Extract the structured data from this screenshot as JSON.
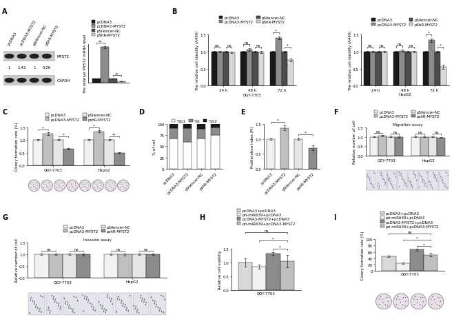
{
  "blot": {
    "lanes": [
      "pcDNA3",
      "pcDNA3-MYST2",
      "pSilencer-NC",
      "pShR-MYST2"
    ],
    "bands": [
      "MYST2",
      "GAPDH"
    ],
    "band_values": [
      1,
      1.43,
      1,
      0.26
    ]
  },
  "chart_data": [
    {
      "type": "bar",
      "panel": "A",
      "categories": [
        null
      ],
      "ylabel": "The relative MYST2 mRNA level",
      "ylim": [
        0,
        10
      ],
      "tick_labels": false,
      "legend": "above",
      "series": [
        {
          "name": "pcDNA3",
          "color": "#1a1a1a",
          "values": [
            1
          ],
          "errors": [
            0.05
          ]
        },
        {
          "name": "pcDNA3-MYST2",
          "color": "#8c8c8c",
          "values": [
            9.2
          ],
          "errors": [
            0.3
          ]
        },
        {
          "name": "pSilencer-NC",
          "color": "#4d4d4d",
          "values": [
            1
          ],
          "errors": [
            0.05
          ]
        },
        {
          "name": "pShR-MYST2",
          "color": "#d9d9d9",
          "values": [
            0.28
          ],
          "errors": [
            0.03
          ]
        }
      ],
      "annotations": [
        {
          "text": "**",
          "group": 0,
          "pair": [
            0,
            1
          ]
        },
        {
          "text": "**",
          "group": 0,
          "pair": [
            2,
            3
          ]
        }
      ]
    },
    {
      "type": "bar",
      "panel": "B",
      "categories": [
        "24 h",
        "48 h",
        "72 h"
      ],
      "xlabel": "QGY-7703",
      "ylabel": "The relative cell viability (A490)",
      "ylim": [
        0,
        1.5
      ],
      "yticks": [
        0.0,
        0.5,
        1.0,
        1.5
      ],
      "legend": "above",
      "series": [
        {
          "name": "pcDNA3",
          "color": "#1a1a1a",
          "values": [
            1,
            1,
            1
          ],
          "errors": [
            0.02,
            0.02,
            0.02
          ]
        },
        {
          "name": "pcDNA3-MYST2",
          "color": "#8c8c8c",
          "values": [
            1,
            1.05,
            1.4
          ],
          "errors": [
            0.02,
            0.04,
            0.05
          ]
        },
        {
          "name": "pSilencer-NC",
          "color": "#4d4d4d",
          "values": [
            1,
            1,
            1
          ],
          "errors": [
            0.02,
            0.02,
            0.02
          ]
        },
        {
          "name": "pShR-MYST2",
          "color": "#d9d9d9",
          "values": [
            0.98,
            0.98,
            0.75
          ],
          "errors": [
            0.02,
            0.03,
            0.04
          ]
        }
      ],
      "annotations": [
        {
          "text": "ns",
          "group": 0,
          "pair": [
            0,
            1
          ]
        },
        {
          "text": "ns",
          "group": 0,
          "pair": [
            2,
            3
          ]
        },
        {
          "text": "ns",
          "group": 1,
          "pair": [
            0,
            1
          ]
        },
        {
          "text": "ns",
          "group": 1,
          "pair": [
            2,
            3
          ]
        },
        {
          "text": "*",
          "group": 2,
          "pair": [
            0,
            1
          ]
        },
        {
          "text": "*",
          "group": 2,
          "pair": [
            2,
            3
          ]
        }
      ]
    },
    {
      "type": "bar",
      "categories": [
        "24 h",
        "48 h",
        "72 h"
      ],
      "xlabel": "HepG2",
      "ylabel": "The relative cell viability (A490)",
      "ylim": [
        0,
        1.5
      ],
      "yticks": [
        0.0,
        0.5,
        1.0,
        1.5
      ],
      "legend": "above",
      "series": [
        {
          "name": "pcDNA3",
          "color": "#1a1a1a",
          "values": [
            1,
            1,
            1
          ],
          "errors": [
            0.02,
            0.02,
            0.02
          ]
        },
        {
          "name": "pcDNA3-MYST2",
          "color": "#8c8c8c",
          "values": [
            1,
            1.02,
            1.33
          ],
          "errors": [
            0.02,
            0.03,
            0.05
          ]
        },
        {
          "name": "pSilencer-NC",
          "color": "#4d4d4d",
          "values": [
            1,
            1,
            1
          ],
          "errors": [
            0.02,
            0.02,
            0.02
          ]
        },
        {
          "name": "pShR-MYST2",
          "color": "#d9d9d9",
          "values": [
            1,
            1,
            0.55
          ],
          "errors": [
            0.02,
            0.02,
            0.06
          ]
        }
      ],
      "annotations": [
        {
          "text": "ns",
          "group": 0,
          "pair": [
            0,
            1
          ]
        },
        {
          "text": "ns",
          "group": 0,
          "pair": [
            2,
            3
          ]
        },
        {
          "text": "ns",
          "group": 1,
          "pair": [
            0,
            1
          ]
        },
        {
          "text": "ns",
          "group": 1,
          "pair": [
            2,
            3
          ]
        },
        {
          "text": "*",
          "group": 2,
          "pair": [
            0,
            1
          ]
        },
        {
          "text": "*",
          "group": 2,
          "pair": [
            2,
            3
          ]
        }
      ]
    },
    {
      "type": "bar",
      "panel": "C",
      "categories": [
        "QGY-7703",
        "HepG2"
      ],
      "ylabel": "Colony formation rate (%)",
      "ylim": [
        0,
        1.5
      ],
      "yticks": [
        0.0,
        0.5,
        1.0,
        1.5
      ],
      "legend": "above",
      "series": [
        {
          "name": "pcDNA3",
          "color": "#f2f2f2",
          "values": [
            1,
            1
          ],
          "errors": [
            0.03,
            0.03
          ]
        },
        {
          "name": "pcDNA3-MYST2",
          "color": "#bfbfbf",
          "values": [
            1.25,
            1.33
          ],
          "errors": [
            0.05,
            0.04
          ]
        },
        {
          "name": "pSilencer-NC",
          "color": "#e6e6e6",
          "values": [
            1,
            1
          ],
          "errors": [
            0.03,
            0.03
          ]
        },
        {
          "name": "pshR-MYST2",
          "color": "#8c8c8c",
          "values": [
            0.65,
            0.5
          ],
          "errors": [
            0.03,
            0.03
          ]
        }
      ],
      "annotations": [
        {
          "text": "*",
          "group": 0,
          "pair": [
            0,
            1
          ]
        },
        {
          "text": "*",
          "group": 0,
          "pair": [
            2,
            3
          ]
        },
        {
          "text": "*",
          "group": 1,
          "pair": [
            0,
            1
          ]
        },
        {
          "text": "**",
          "group": 1,
          "pair": [
            2,
            3
          ]
        }
      ]
    },
    {
      "type": "bar",
      "panel": "D",
      "stacked": true,
      "categories": [
        "pcDNA3",
        "pcDNA3-MYST2",
        "pSilencer-NC",
        "pshR-MYST2"
      ],
      "ylabel": "% of cell",
      "ylim": [
        0,
        100
      ],
      "yticks": [
        0,
        25,
        50,
        75,
        100
      ],
      "legend": "above",
      "series": [
        {
          "name": "%G1",
          "color": "#ffffff",
          "values": [
            68,
            60,
            67,
            75
          ]
        },
        {
          "name": "%S",
          "color": "#8c8c8c",
          "values": [
            22,
            30,
            22,
            17
          ]
        },
        {
          "name": "%G2",
          "color": "#1a1a1a",
          "values": [
            10,
            10,
            11,
            8
          ]
        }
      ]
    },
    {
      "type": "bar",
      "panel": "E",
      "categories": [
        "pcDNA3",
        "pcDNA3-MYST2",
        "pSilencer-NC",
        "pshR-MYST2"
      ],
      "ylabel": "Proliferation index (PI)",
      "ylim": [
        0,
        1.5
      ],
      "yticks": [
        0.0,
        0.5,
        1.0,
        1.5
      ],
      "values": [
        1.0,
        1.37,
        1.0,
        0.7
      ],
      "errors": [
        0.03,
        0.08,
        0.04,
        0.08
      ],
      "colors": [
        "#f2f2f2",
        "#bfbfbf",
        "#e6e6e6",
        "#8c8c8c"
      ],
      "annotations": [
        {
          "text": "*",
          "pair": [
            0,
            1
          ]
        },
        {
          "text": "*",
          "pair": [
            2,
            3
          ]
        }
      ]
    },
    {
      "type": "bar",
      "panel": "F",
      "title": "Migration assay",
      "categories": [
        "QGY-7703",
        "HepG2"
      ],
      "ylabel": "Relative number of cell",
      "ylim": [
        0,
        1.5
      ],
      "yticks": [
        0.0,
        0.5,
        1.0,
        1.5
      ],
      "legend": "above",
      "series": [
        {
          "name": "pcDNA3",
          "color": "#f2f2f2",
          "values": [
            1,
            1
          ],
          "errors": [
            0.03,
            0.03
          ]
        },
        {
          "name": "pcDNA3-MYST2",
          "color": "#bfbfbf",
          "values": [
            1.05,
            1.0
          ],
          "errors": [
            0.03,
            0.03
          ]
        },
        {
          "name": "pSilencer-NC",
          "color": "#e6e6e6",
          "values": [
            1,
            1
          ],
          "errors": [
            0.03,
            0.03
          ]
        },
        {
          "name": "pshR-MYST2",
          "color": "#8c8c8c",
          "values": [
            0.98,
            0.96
          ],
          "errors": [
            0.04,
            0.03
          ]
        }
      ],
      "annotations": [
        {
          "text": "ns",
          "group": 0,
          "pair": [
            0,
            1
          ]
        },
        {
          "text": "ns",
          "group": 0,
          "pair": [
            2,
            3
          ]
        },
        {
          "text": "ns",
          "group": 1,
          "pair": [
            0,
            1
          ]
        },
        {
          "text": "ns",
          "group": 1,
          "pair": [
            2,
            3
          ]
        }
      ]
    },
    {
      "type": "bar",
      "panel": "G",
      "title": "Invasion assay",
      "categories": [
        "QGY-7703",
        "HepG2"
      ],
      "ylabel": "Relative number of cell",
      "ylim": [
        0,
        1.5
      ],
      "yticks": [
        0.0,
        0.5,
        1.0,
        1.5
      ],
      "legend": "above",
      "series": [
        {
          "name": "pcDNA3",
          "color": "#f2f2f2",
          "values": [
            1,
            1
          ],
          "errors": [
            0.03,
            0.03
          ]
        },
        {
          "name": "pcDNA3-MYST2",
          "color": "#bfbfbf",
          "values": [
            1.0,
            0.98
          ],
          "errors": [
            0.03,
            0.04
          ]
        },
        {
          "name": "pSilencer-NC",
          "color": "#e6e6e6",
          "values": [
            1,
            1
          ],
          "errors": [
            0.03,
            0.03
          ]
        },
        {
          "name": "pshR-MYST2",
          "color": "#8c8c8c",
          "values": [
            0.98,
            0.98
          ],
          "errors": [
            0.04,
            0.03
          ]
        }
      ],
      "annotations": [
        {
          "text": "ns",
          "group": 0,
          "pair": [
            0,
            1
          ]
        },
        {
          "text": "ns",
          "group": 0,
          "pair": [
            2,
            3
          ]
        },
        {
          "text": "ns",
          "group": 1,
          "pair": [
            0,
            1
          ]
        },
        {
          "text": "ns",
          "group": 1,
          "pair": [
            2,
            3
          ]
        }
      ]
    },
    {
      "type": "bar",
      "panel": "H",
      "categories": [
        null
      ],
      "xlabel": "QGY-7703",
      "ylabel": "Relative cell viability",
      "ylim": [
        0,
        1.5
      ],
      "yticks": [
        0.0,
        0.5,
        1.0,
        1.5
      ],
      "legend": "above",
      "series": [
        {
          "name": "pcDNA3+pcDNA3",
          "color": "#d9d9d9",
          "values": [
            1.0
          ],
          "errors": [
            0.15
          ]
        },
        {
          "name": "pri-miR639+pcDNA3",
          "color": "#f2f2f2",
          "values": [
            0.85
          ],
          "errors": [
            0.08
          ]
        },
        {
          "name": "pcDNA3-MYST2+pcDNA3",
          "color": "#8c8c8c",
          "values": [
            1.33
          ],
          "errors": [
            0.05
          ]
        },
        {
          "name": "pri-miR639+pcDNA3-MYST2",
          "color": "#bfbfbf",
          "values": [
            1.05
          ],
          "errors": [
            0.22
          ]
        }
      ],
      "annotations": [
        {
          "text": "*",
          "group": 0,
          "pair": [
            2,
            3
          ]
        },
        {
          "text": "*",
          "group": 0,
          "pair": [
            1,
            3
          ]
        },
        {
          "text": "ns",
          "group": 0,
          "pair": [
            0,
            3
          ]
        }
      ]
    },
    {
      "type": "bar",
      "panel": "I",
      "categories": [
        null
      ],
      "xlabel": "QGY-7703",
      "ylabel": "Colony formation rate (%)",
      "ylim": [
        0,
        100
      ],
      "yticks": [
        0,
        20,
        40,
        60,
        80,
        100
      ],
      "legend": "above",
      "series": [
        {
          "name": "pcDNA3+pcDNA3",
          "color": "#d9d9d9",
          "values": [
            47
          ],
          "errors": [
            2
          ]
        },
        {
          "name": "pri-miR639+pcDNA3",
          "color": "#f2f2f2",
          "values": [
            25
          ],
          "errors": [
            2
          ]
        },
        {
          "name": "pcDNA3-MYST2+pcDNA3",
          "color": "#8c8c8c",
          "values": [
            67
          ],
          "errors": [
            3
          ]
        },
        {
          "name": "pri-miR639+pcDNA3-MYST2",
          "color": "#bfbfbf",
          "values": [
            51
          ],
          "errors": [
            5
          ]
        }
      ],
      "annotations": [
        {
          "text": "*",
          "group": 0,
          "pair": [
            2,
            3
          ]
        },
        {
          "text": "*",
          "group": 0,
          "pair": [
            1,
            3
          ]
        },
        {
          "text": "ns",
          "group": 0,
          "pair": [
            0,
            3
          ]
        }
      ]
    }
  ]
}
